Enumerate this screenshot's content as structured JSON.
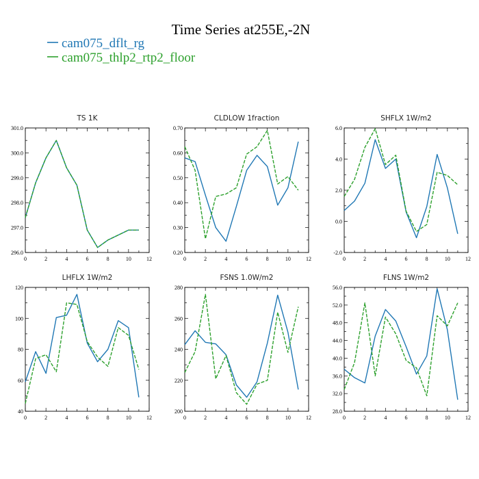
{
  "figure": {
    "title": "Time Series at255E,-2N",
    "legend": [
      {
        "label": "cam075_dflt_rg",
        "color": "#1f77b4"
      },
      {
        "label": "cam075_thlp2_rtp2_floor",
        "color": "#2ca02c"
      }
    ]
  },
  "chart_data": [
    {
      "type": "line",
      "title": "TS   1K",
      "x": [
        0,
        1,
        2,
        3,
        4,
        5,
        6,
        7,
        8,
        9,
        10,
        11
      ],
      "xlim": [
        0,
        12
      ],
      "xticks": [
        "0",
        "2",
        "4",
        "6",
        "8",
        "10",
        "12"
      ],
      "ylim": [
        296.0,
        301.0
      ],
      "yticks": [
        "296.0",
        "297.0",
        "298.0",
        "299.0",
        "300.0",
        "301.0"
      ],
      "series": [
        {
          "name": "cam075_dflt_rg",
          "color": "#1f77b4",
          "dash": "",
          "values": [
            297.4,
            298.8,
            299.8,
            300.5,
            299.4,
            298.7,
            296.9,
            296.2,
            296.5,
            296.7,
            296.9,
            296.9
          ]
        },
        {
          "name": "cam075_thlp2_rtp2_floor",
          "color": "#2ca02c",
          "dash": "5,2",
          "values": [
            297.4,
            298.8,
            299.8,
            300.5,
            299.4,
            298.7,
            296.9,
            296.2,
            296.5,
            296.7,
            296.9,
            296.9
          ]
        }
      ]
    },
    {
      "type": "line",
      "title": "CLDLOW   1fraction",
      "x": [
        0,
        1,
        2,
        3,
        4,
        5,
        6,
        7,
        8,
        9,
        10,
        11
      ],
      "xlim": [
        0,
        12
      ],
      "xticks": [
        "0",
        "2",
        "4",
        "6",
        "8",
        "10",
        "12"
      ],
      "ylim": [
        0.2,
        0.7
      ],
      "yticks": [
        "0.20",
        "0.30",
        "0.40",
        "0.50",
        "0.60",
        "0.70"
      ],
      "series": [
        {
          "name": "cam075_dflt_rg",
          "color": "#1f77b4",
          "dash": "",
          "values": [
            0.58,
            0.565,
            0.43,
            0.3,
            0.245,
            0.385,
            0.53,
            0.59,
            0.545,
            0.39,
            0.46,
            0.645
          ]
        },
        {
          "name": "cam075_thlp2_rtp2_floor",
          "color": "#2ca02c",
          "dash": "5,2",
          "values": [
            0.625,
            0.53,
            0.255,
            0.425,
            0.435,
            0.46,
            0.595,
            0.625,
            0.69,
            0.475,
            0.505,
            0.45
          ]
        }
      ]
    },
    {
      "type": "line",
      "title": "SHFLX   1W/m2",
      "x": [
        0,
        1,
        2,
        3,
        4,
        5,
        6,
        7,
        8,
        9,
        10,
        11
      ],
      "xlim": [
        0,
        12
      ],
      "xticks": [
        "0",
        "2",
        "4",
        "6",
        "8",
        "10",
        "12"
      ],
      "ylim": [
        -2.0,
        6.0
      ],
      "yticks": [
        "-2.0",
        "0.0",
        "2.0",
        "4.0",
        "6.0"
      ],
      "series": [
        {
          "name": "cam075_dflt_rg",
          "color": "#1f77b4",
          "dash": "",
          "values": [
            0.7,
            1.3,
            2.45,
            5.25,
            3.4,
            4.0,
            0.6,
            -1.05,
            0.95,
            4.3,
            2.15,
            -0.8
          ]
        },
        {
          "name": "cam075_thlp2_rtp2_floor",
          "color": "#2ca02c",
          "dash": "5,2",
          "values": [
            1.6,
            2.7,
            4.75,
            5.95,
            3.65,
            4.25,
            0.65,
            -0.65,
            -0.2,
            3.15,
            2.95,
            2.35
          ]
        }
      ]
    },
    {
      "type": "line",
      "title": "LHFLX   1W/m2",
      "x": [
        0,
        1,
        2,
        3,
        4,
        5,
        6,
        7,
        8,
        9,
        10,
        11
      ],
      "xlim": [
        0,
        12
      ],
      "xticks": [
        "0",
        "2",
        "4",
        "6",
        "8",
        "10",
        "12"
      ],
      "ylim": [
        40,
        120
      ],
      "yticks": [
        "40",
        "60",
        "80",
        "100",
        "120"
      ],
      "series": [
        {
          "name": "cam075_dflt_rg",
          "color": "#1f77b4",
          "dash": "",
          "values": [
            59,
            78.5,
            64.5,
            100.5,
            102,
            115.5,
            84,
            72,
            80,
            98.5,
            94,
            49
          ]
        },
        {
          "name": "cam075_thlp2_rtp2_floor",
          "color": "#2ca02c",
          "dash": "5,2",
          "values": [
            45,
            74,
            76.5,
            65.5,
            110,
            109,
            85,
            75,
            69,
            94,
            89,
            67
          ]
        }
      ]
    },
    {
      "type": "line",
      "title": "FSNS   1.0W/m2",
      "x": [
        0,
        1,
        2,
        3,
        4,
        5,
        6,
        7,
        8,
        9,
        10,
        11
      ],
      "xlim": [
        0,
        12
      ],
      "xticks": [
        "0",
        "2",
        "4",
        "6",
        "8",
        "10",
        "12"
      ],
      "ylim": [
        200,
        280
      ],
      "yticks": [
        "200",
        "220",
        "240",
        "260",
        "280"
      ],
      "series": [
        {
          "name": "cam075_dflt_rg",
          "color": "#1f77b4",
          "dash": "",
          "values": [
            243,
            252,
            244.5,
            243.5,
            236.5,
            217,
            209,
            219,
            244,
            275,
            251,
            214
          ]
        },
        {
          "name": "cam075_thlp2_rtp2_floor",
          "color": "#2ca02c",
          "dash": "5,2",
          "values": [
            225,
            238.5,
            275.5,
            221,
            236,
            212,
            204.5,
            217.5,
            220,
            264,
            238,
            267.5
          ]
        }
      ]
    },
    {
      "type": "line",
      "title": "FLNS   1W/m2",
      "x": [
        0,
        1,
        2,
        3,
        4,
        5,
        6,
        7,
        8,
        9,
        10,
        11
      ],
      "xlim": [
        0,
        12
      ],
      "xticks": [
        "0",
        "2",
        "4",
        "6",
        "8",
        "10",
        "12"
      ],
      "ylim": [
        28.0,
        56.0
      ],
      "yticks": [
        "28.0",
        "32.0",
        "36.0",
        "40.0",
        "44.0",
        "48.0",
        "52.0",
        "56.0"
      ],
      "series": [
        {
          "name": "cam075_dflt_rg",
          "color": "#1f77b4",
          "dash": "",
          "values": [
            37.5,
            35.6,
            34.4,
            45,
            51,
            48.4,
            42.6,
            36.4,
            40.5,
            55.7,
            46.4,
            30.6
          ]
        },
        {
          "name": "cam075_thlp2_rtp2_floor",
          "color": "#2ca02c",
          "dash": "5,2",
          "values": [
            32.9,
            39,
            52.5,
            36,
            49.3,
            45.5,
            39.5,
            37.8,
            31.5,
            49.6,
            47.3,
            52.5
          ]
        }
      ]
    }
  ]
}
